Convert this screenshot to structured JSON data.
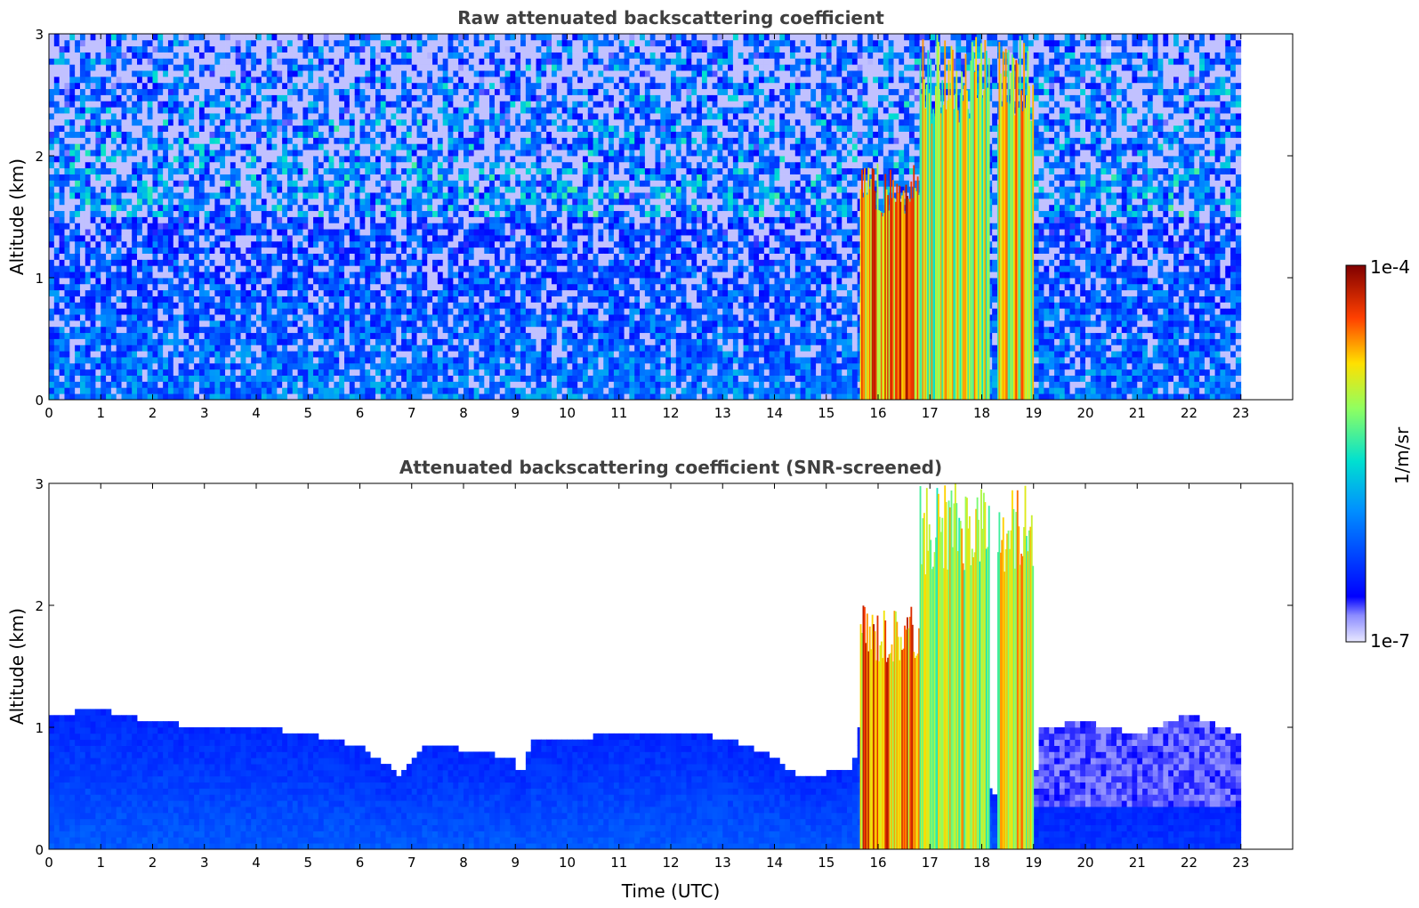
{
  "chart_data": [
    {
      "type": "heatmap",
      "title": "Raw attenuated backscattering coefficient",
      "xlabel": "",
      "ylabel": "Altitude (km)",
      "xlim": [
        0,
        24
      ],
      "ylim": [
        0,
        3
      ],
      "xticks": [
        "0",
        "1",
        "2",
        "3",
        "4",
        "5",
        "6",
        "7",
        "8",
        "9",
        "10",
        "11",
        "12",
        "13",
        "14",
        "15",
        "16",
        "17",
        "18",
        "19",
        "20",
        "21",
        "22",
        "23"
      ],
      "yticks": [
        "0",
        "1",
        "2",
        "3"
      ],
      "data_end_time": 23,
      "screened": false,
      "layers": [
        {
          "name": "boundary layer",
          "t0": 0,
          "t1": 23,
          "top_km": 0.6,
          "level": 0.22
        },
        {
          "name": "cloud",
          "t0": 15.65,
          "t1": 16.8,
          "top_km": 2.0,
          "level": 0.8
        },
        {
          "name": "precipitation",
          "t0": 16.8,
          "t1": 18.15,
          "top_km": 3.0,
          "level": 0.65
        },
        {
          "name": "precipitation",
          "t0": 18.3,
          "t1": 19.0,
          "top_km": 3.0,
          "level": 0.7
        }
      ]
    },
    {
      "type": "heatmap",
      "title": "Attenuated backscattering coefficient (SNR-screened)",
      "xlabel": "Time (UTC)",
      "ylabel": "Altitude (km)",
      "xlim": [
        0,
        24
      ],
      "ylim": [
        0,
        3
      ],
      "xticks": [
        "0",
        "1",
        "2",
        "3",
        "4",
        "5",
        "6",
        "7",
        "8",
        "9",
        "10",
        "11",
        "12",
        "13",
        "14",
        "15",
        "16",
        "17",
        "18",
        "19",
        "20",
        "21",
        "22",
        "23"
      ],
      "yticks": [
        "0",
        "1",
        "2",
        "3"
      ],
      "data_end_time": 23,
      "screened": true,
      "boundary_layer_top_km": [
        [
          0,
          1.1
        ],
        [
          1,
          1.15
        ],
        [
          2,
          1.05
        ],
        [
          3,
          1.0
        ],
        [
          4,
          1.0
        ],
        [
          5,
          0.95
        ],
        [
          6,
          0.85
        ],
        [
          6.8,
          0.6
        ],
        [
          7.2,
          0.85
        ],
        [
          8,
          0.82
        ],
        [
          9,
          0.75
        ],
        [
          9.1,
          0.55
        ],
        [
          9.3,
          0.9
        ],
        [
          10,
          0.9
        ],
        [
          11,
          0.95
        ],
        [
          12,
          0.95
        ],
        [
          13,
          0.92
        ],
        [
          14,
          0.75
        ],
        [
          14.5,
          0.6
        ],
        [
          15.5,
          0.65
        ],
        [
          15.65,
          1.0
        ],
        [
          19.0,
          0.3
        ],
        [
          19.1,
          1.0
        ],
        [
          20,
          1.05
        ],
        [
          21,
          0.95
        ],
        [
          22,
          1.1
        ],
        [
          23,
          0.95
        ]
      ],
      "layers": [
        {
          "name": "cloud",
          "t0": 15.65,
          "t1": 16.8,
          "top_km": 2.0,
          "level": 0.8
        },
        {
          "name": "precipitation",
          "t0": 16.8,
          "t1": 18.15,
          "top_km": 3.0,
          "level": 0.65
        },
        {
          "name": "precipitation",
          "t0": 18.3,
          "t1": 19.0,
          "top_km": 3.0,
          "level": 0.7
        }
      ]
    }
  ],
  "colorbar": {
    "label": "1/m/sr",
    "max_label": "1e-4",
    "min_label": "1e-7",
    "colormap": "jet",
    "scale": "log"
  }
}
